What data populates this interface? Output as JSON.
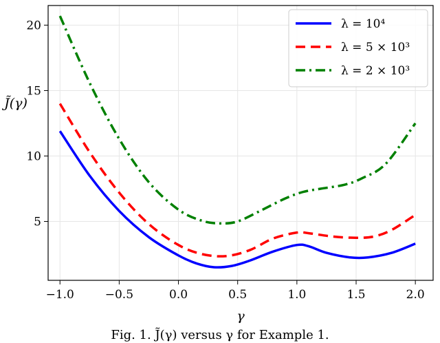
{
  "chart_data": {
    "type": "line",
    "xlabel": "γ",
    "ylabel": "J̃(γ)",
    "xlim": [
      -1.1,
      2.15
    ],
    "ylim": [
      0.5,
      21.5
    ],
    "xticks": [
      -1.0,
      -0.5,
      0.0,
      0.5,
      1.0,
      1.5,
      2.0
    ],
    "xtick_labels": [
      "−1.0",
      "−0.5",
      "0.0",
      "0.5",
      "1.0",
      "1.5",
      "2.0"
    ],
    "yticks": [
      5,
      10,
      15,
      20
    ],
    "ytick_labels": [
      "5",
      "10",
      "15",
      "20"
    ],
    "grid": true,
    "legend_position": "top-right",
    "series": [
      {
        "name": "λ = 10⁴",
        "color": "#0000ff",
        "style": "solid",
        "points": [
          [
            -1.0,
            11.9
          ],
          [
            -0.75,
            8.5
          ],
          [
            -0.5,
            5.8
          ],
          [
            -0.25,
            3.8
          ],
          [
            0.0,
            2.4
          ],
          [
            0.15,
            1.8
          ],
          [
            0.3,
            1.5
          ],
          [
            0.45,
            1.6
          ],
          [
            0.6,
            2.0
          ],
          [
            0.8,
            2.7
          ],
          [
            1.0,
            3.2
          ],
          [
            1.1,
            3.1
          ],
          [
            1.25,
            2.6
          ],
          [
            1.45,
            2.25
          ],
          [
            1.6,
            2.25
          ],
          [
            1.8,
            2.6
          ],
          [
            2.0,
            3.3
          ]
        ]
      },
      {
        "name": "λ = 5 × 10³",
        "color": "#ff0000",
        "style": "dashed",
        "points": [
          [
            -1.0,
            14.0
          ],
          [
            -0.75,
            10.3
          ],
          [
            -0.5,
            7.2
          ],
          [
            -0.25,
            4.8
          ],
          [
            0.0,
            3.2
          ],
          [
            0.2,
            2.5
          ],
          [
            0.4,
            2.35
          ],
          [
            0.6,
            2.8
          ],
          [
            0.8,
            3.7
          ],
          [
            1.0,
            4.15
          ],
          [
            1.1,
            4.1
          ],
          [
            1.3,
            3.85
          ],
          [
            1.5,
            3.75
          ],
          [
            1.65,
            3.85
          ],
          [
            1.8,
            4.35
          ],
          [
            2.0,
            5.5
          ]
        ]
      },
      {
        "name": "λ = 2 × 10³",
        "color": "#008000",
        "style": "dashdot",
        "points": [
          [
            -1.0,
            20.7
          ],
          [
            -0.75,
            15.6
          ],
          [
            -0.5,
            11.3
          ],
          [
            -0.25,
            8.0
          ],
          [
            0.0,
            5.9
          ],
          [
            0.2,
            5.05
          ],
          [
            0.35,
            4.85
          ],
          [
            0.5,
            5.0
          ],
          [
            0.7,
            5.85
          ],
          [
            0.9,
            6.75
          ],
          [
            1.05,
            7.25
          ],
          [
            1.2,
            7.5
          ],
          [
            1.4,
            7.8
          ],
          [
            1.55,
            8.3
          ],
          [
            1.75,
            9.4
          ],
          [
            2.0,
            12.5
          ]
        ]
      }
    ]
  },
  "caption": "Fig. 1.  J̃(γ)  versus γ for Example 1."
}
